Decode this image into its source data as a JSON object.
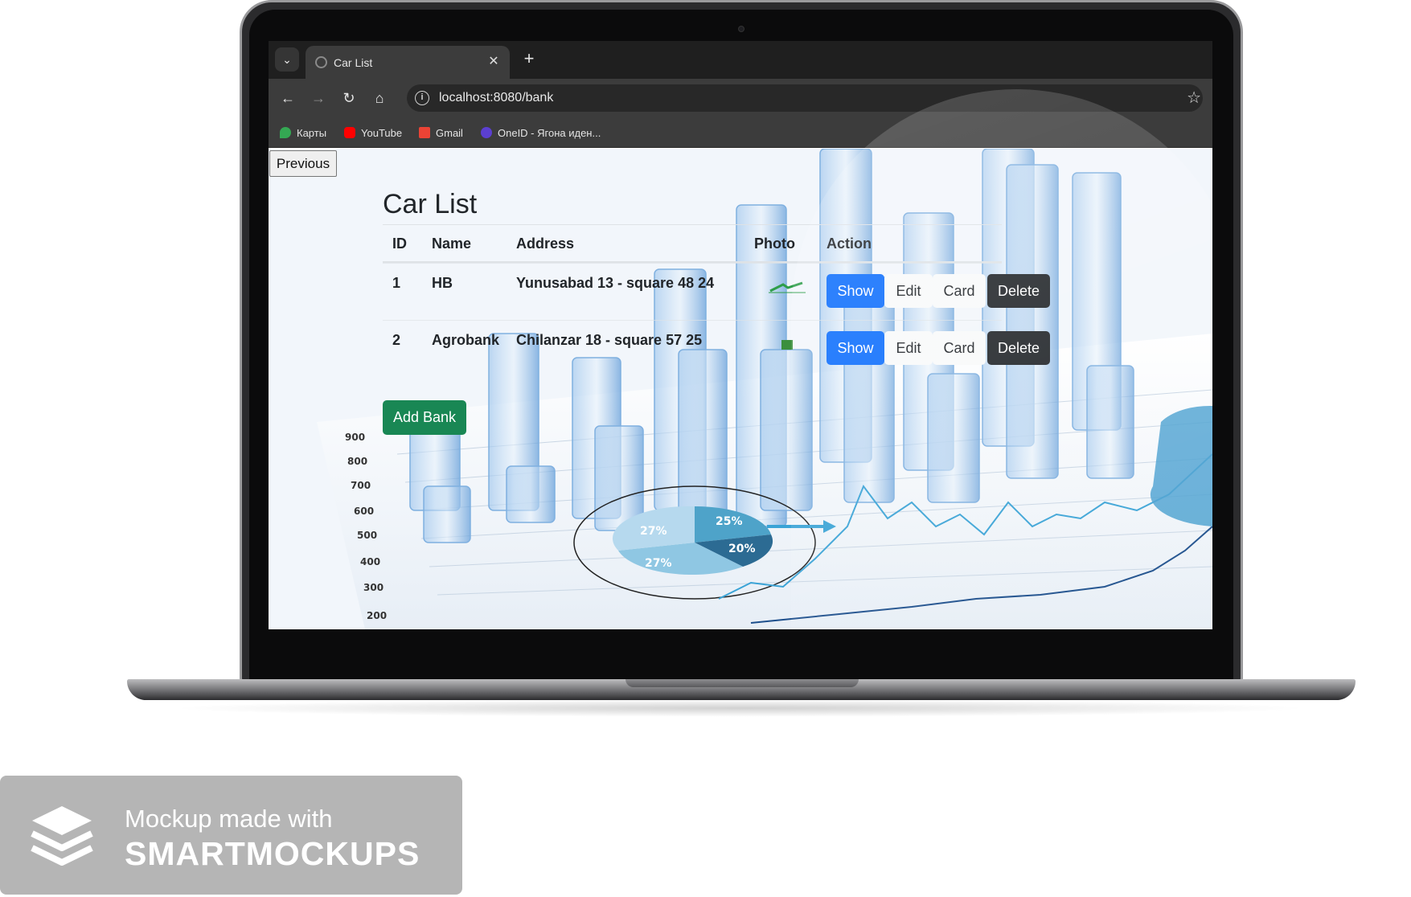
{
  "browser": {
    "tab_title": "Car List",
    "url": "localhost:8080/bank",
    "bookmarks": [
      {
        "label": "Карты",
        "icon": "maps-pin-icon",
        "color": "#34a853"
      },
      {
        "label": "YouTube",
        "icon": "youtube-icon",
        "color": "#ff0000"
      },
      {
        "label": "Gmail",
        "icon": "gmail-icon",
        "color": "#ea4335"
      },
      {
        "label": "OneID - Ягона иден...",
        "icon": "oneid-icon",
        "color": "#5b3fd1"
      }
    ]
  },
  "page": {
    "previous_label": "Previous",
    "heading": "Car List",
    "table": {
      "columns": [
        "ID",
        "Name",
        "Address",
        "Photo",
        "Action"
      ],
      "rows": [
        {
          "id": "1",
          "name": "HB",
          "address": "Yunusabad 13 - square 48 24"
        },
        {
          "id": "2",
          "name": "Agrobank",
          "address": "Chilanzar 18 - square 57 25"
        }
      ],
      "actions": {
        "show": "Show",
        "edit": "Edit",
        "card": "Card",
        "delete": "Delete"
      }
    },
    "add_label": "Add Bank",
    "background_chart_labels": {
      "y_ticks": [
        "900",
        "800",
        "700",
        "600",
        "500",
        "400",
        "300",
        "200"
      ],
      "pie_labels": [
        "27%",
        "25%",
        "20%",
        "27%"
      ]
    }
  },
  "watermark": {
    "line1": "Mockup made with",
    "line2": "SMARTMOCKUPS"
  },
  "colors": {
    "primary": "#0d6efd",
    "success": "#198754",
    "dark": "#212529"
  }
}
